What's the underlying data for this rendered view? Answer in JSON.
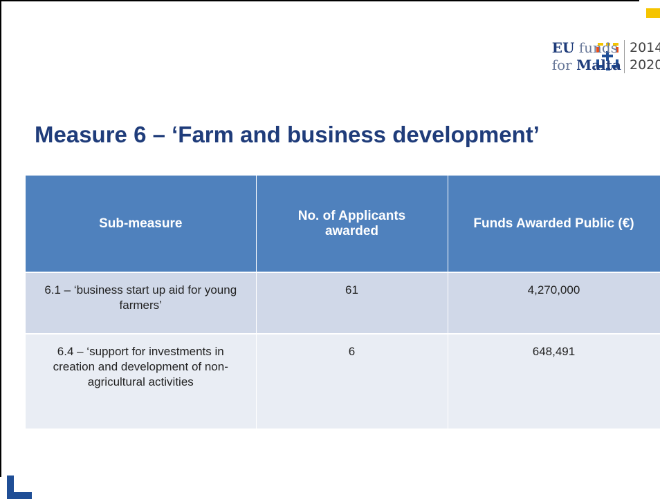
{
  "logo": {
    "eu": "EU",
    "funds": "funds",
    "for": "for",
    "malta": "Malta",
    "year_start": "2014",
    "year_end": "2020"
  },
  "title": "Measure 6 – ‘Farm and business development’",
  "table": {
    "headers": [
      "Sub-measure",
      "No. of Applicants awarded",
      "Funds Awarded Public (€)"
    ],
    "rows": [
      [
        "6.1 – ‘business start up aid for young farmers’",
        "61",
        "4,270,000"
      ],
      [
        "6.4 – ‘support for investments in creation and development of non-agricultural activities",
        "6",
        "648,491"
      ]
    ]
  }
}
